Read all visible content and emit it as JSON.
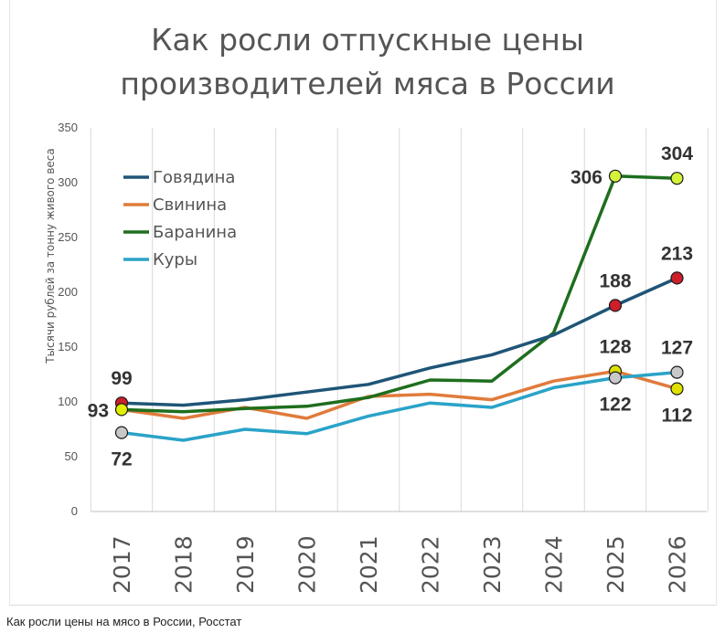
{
  "caption": "Как росли цены на мясо в России, Росстат",
  "chart_data": {
    "type": "line",
    "title_lines": [
      "Как росли отпускные цены",
      "производителей мяса в России"
    ],
    "ylabel": "Тысячи рублей за тонну живого веса",
    "xlabel": "",
    "ylim": [
      0,
      350
    ],
    "yticks": [
      0,
      50,
      100,
      150,
      200,
      250,
      300,
      350
    ],
    "categories": [
      "2017",
      "2018",
      "2019",
      "2020",
      "2021",
      "2022",
      "2023",
      "2024",
      "2025",
      "2026"
    ],
    "grid": "vertical",
    "legend_position": "top-left",
    "series": [
      {
        "name": "Говядина",
        "color": "#1f5577",
        "values": [
          99,
          97,
          102,
          109,
          116,
          131,
          143,
          161,
          188,
          213
        ]
      },
      {
        "name": "Свинина",
        "color": "#e07b3c",
        "values": [
          93,
          85,
          95,
          85,
          105,
          107,
          102,
          119,
          128,
          112
        ]
      },
      {
        "name": "Баранина",
        "color": "#1e6e1e",
        "values": [
          93,
          91,
          94,
          96,
          104,
          120,
          119,
          163,
          306,
          304
        ]
      },
      {
        "name": "Куры",
        "color": "#2aa3c8",
        "values": [
          72,
          65,
          75,
          71,
          87,
          99,
          95,
          113,
          122,
          127
        ]
      }
    ],
    "markers": [
      {
        "series": 0,
        "index": 0,
        "fill": "#cc1f2a"
      },
      {
        "series": 0,
        "index": 8,
        "fill": "#cc1f2a"
      },
      {
        "series": 0,
        "index": 9,
        "fill": "#cc1f2a"
      },
      {
        "series": 1,
        "index": 8,
        "fill": "#e0e000"
      },
      {
        "series": 1,
        "index": 9,
        "fill": "#e0e000"
      },
      {
        "series": 2,
        "index": 0,
        "fill": "#e0f000"
      },
      {
        "series": 2,
        "index": 8,
        "fill": "#d4f23a"
      },
      {
        "series": 2,
        "index": 9,
        "fill": "#d4f23a"
      },
      {
        "series": 3,
        "index": 0,
        "fill": "#c8c8c8"
      },
      {
        "series": 3,
        "index": 8,
        "fill": "#c8c8c8"
      },
      {
        "series": 3,
        "index": 9,
        "fill": "#c8c8c8"
      }
    ],
    "data_labels": [
      {
        "text": "99",
        "series": 0,
        "index": 0,
        "anchor": "above"
      },
      {
        "text": "93",
        "series": 2,
        "index": 0,
        "anchor": "left"
      },
      {
        "text": "72",
        "series": 3,
        "index": 0,
        "anchor": "below"
      },
      {
        "text": "306",
        "series": 2,
        "index": 8,
        "anchor": "left"
      },
      {
        "text": "304",
        "series": 2,
        "index": 9,
        "anchor": "above"
      },
      {
        "text": "188",
        "series": 0,
        "index": 8,
        "anchor": "above"
      },
      {
        "text": "213",
        "series": 0,
        "index": 9,
        "anchor": "above"
      },
      {
        "text": "128",
        "series": 1,
        "index": 8,
        "anchor": "above"
      },
      {
        "text": "127",
        "series": 3,
        "index": 9,
        "anchor": "above"
      },
      {
        "text": "122",
        "series": 3,
        "index": 8,
        "anchor": "below"
      },
      {
        "text": "112",
        "series": 1,
        "index": 9,
        "anchor": "below"
      }
    ]
  }
}
